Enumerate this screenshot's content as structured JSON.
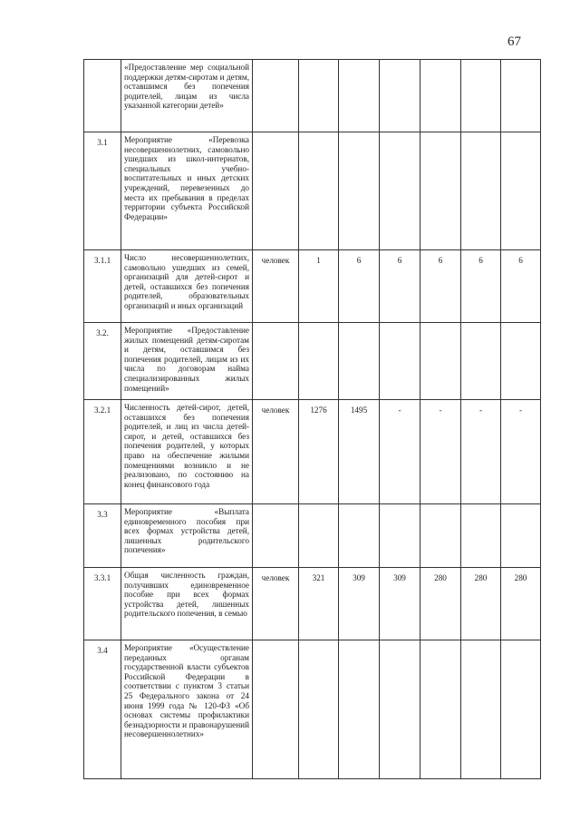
{
  "page_number": "67",
  "rows": [
    {
      "num": "",
      "text": "«Предоставление мер социальной поддержки детям-сиротам и детям, оставшимся без попечения родителей, лицам из числа указанной категории детей»",
      "unit": "",
      "values": [
        "",
        "",
        "",
        "",
        "",
        ""
      ]
    },
    {
      "num": "3.1",
      "text": "Мероприятие «Перевозка несовершеннолетних, самовольно ушедших из школ-интернатов, специальных учебно-воспитательных и иных детских учреждений, перевезенных до места их пребывания в пределах территории субъекта Российской Федерации»",
      "unit": "",
      "values": [
        "",
        "",
        "",
        "",
        "",
        ""
      ]
    },
    {
      "num": "3.1.1",
      "text": "Число несовершеннолетних, самовольно ушедших из семей, организаций для детей-сирот и детей, оставшихся без попечения родителей, образовательных организаций и иных организаций",
      "unit": "человек",
      "values": [
        "1",
        "6",
        "6",
        "6",
        "6",
        "6"
      ]
    },
    {
      "num": "3.2.",
      "text": "Мероприятие «Предоставление жилых помещений детям-сиротам и детям, оставшимся без попечения родителей, лицам из их числа по договорам найма специализированных жилых помещений»",
      "unit": "",
      "values": [
        "",
        "",
        "",
        "",
        "",
        ""
      ]
    },
    {
      "num": "3.2.1",
      "text": "Численность детей-сирот, детей, оставшихся без попечения родителей, и лиц из числа детей-сирот, и детей, оставшихся без попечения родителей, у которых право на обеспечение жилыми помещениями возникло и не реализовано, по состоянию на конец финансового года",
      "unit": "человек",
      "values": [
        "1276",
        "1495",
        "-",
        "-",
        "-",
        "-"
      ]
    },
    {
      "num": "3.3",
      "text": "Мероприятие «Выплата единовременного пособия при всех формах устройства детей, лишенных родительского попечения»",
      "unit": "",
      "values": [
        "",
        "",
        "",
        "",
        "",
        ""
      ]
    },
    {
      "num": "3.3.1",
      "text": "Общая численность граждан, получивших единовременное пособие при всех формах устройства детей, лишенных родительского попечения, в семью",
      "unit": "человек",
      "values": [
        "321",
        "309",
        "309",
        "280",
        "280",
        "280"
      ]
    },
    {
      "num": "3.4",
      "text": "Мероприятие «Осуществление переданных органам государственной власти субъектов Российской Федерации в соответствии с пунктом 3 статьи 25 Федерального закона от 24 июня 1999 года № 120-ФЗ «Об основах системы профилактики безнадзорности и правонарушений несовершеннолетних»",
      "unit": "",
      "values": [
        "",
        "",
        "",
        "",
        "",
        ""
      ]
    }
  ]
}
